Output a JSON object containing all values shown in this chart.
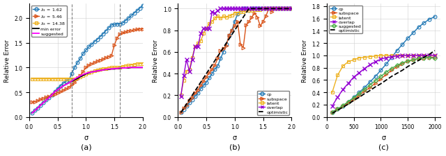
{
  "fig_width": 6.4,
  "fig_height": 2.26,
  "dpi": 100,
  "subplot_a": {
    "sigma": [
      0.05,
      0.1,
      0.15,
      0.2,
      0.25,
      0.3,
      0.35,
      0.4,
      0.45,
      0.5,
      0.55,
      0.6,
      0.65,
      0.7,
      0.75,
      0.8,
      0.85,
      0.9,
      0.95,
      1.0,
      1.05,
      1.1,
      1.15,
      1.2,
      1.25,
      1.3,
      1.35,
      1.4,
      1.45,
      1.5,
      1.55,
      1.6,
      1.65,
      1.7,
      1.75,
      1.8,
      1.85,
      1.9,
      1.95,
      2.0
    ],
    "lambda1": [
      0.08,
      0.13,
      0.18,
      0.24,
      0.29,
      0.34,
      0.39,
      0.45,
      0.51,
      0.57,
      0.63,
      0.68,
      0.72,
      0.75,
      0.88,
      1.0,
      1.1,
      1.18,
      1.28,
      1.35,
      1.42,
      1.47,
      1.52,
      1.57,
      1.62,
      1.68,
      1.74,
      1.8,
      1.86,
      1.87,
      1.88,
      1.88,
      1.9,
      1.95,
      2.0,
      2.05,
      2.1,
      2.15,
      2.2,
      2.25
    ],
    "lambda2": [
      0.3,
      0.31,
      0.33,
      0.36,
      0.38,
      0.4,
      0.42,
      0.44,
      0.46,
      0.49,
      0.51,
      0.54,
      0.57,
      0.6,
      0.65,
      0.7,
      0.76,
      0.84,
      0.92,
      1.0,
      1.05,
      1.08,
      1.1,
      1.13,
      1.15,
      1.17,
      1.2,
      1.22,
      1.24,
      1.45,
      1.6,
      1.68,
      1.7,
      1.72,
      1.74,
      1.75,
      1.76,
      1.77,
      1.78,
      1.78
    ],
    "lambda3": [
      0.77,
      0.77,
      0.77,
      0.77,
      0.77,
      0.77,
      0.77,
      0.77,
      0.77,
      0.77,
      0.77,
      0.77,
      0.77,
      0.77,
      0.77,
      0.77,
      0.79,
      0.81,
      0.84,
      0.87,
      0.89,
      0.91,
      0.93,
      0.95,
      0.96,
      0.97,
      0.98,
      0.99,
      1.0,
      1.0,
      1.0,
      1.01,
      1.02,
      1.03,
      1.04,
      1.05,
      1.06,
      1.07,
      1.08,
      1.08
    ],
    "min_error": [
      0.08,
      0.13,
      0.18,
      0.24,
      0.29,
      0.34,
      0.39,
      0.45,
      0.51,
      0.55,
      0.59,
      0.63,
      0.66,
      0.69,
      0.72,
      0.75,
      0.78,
      0.81,
      0.84,
      0.87,
      0.89,
      0.91,
      0.92,
      0.93,
      0.94,
      0.95,
      0.96,
      0.96,
      0.97,
      0.97,
      0.98,
      0.98,
      0.99,
      0.99,
      0.99,
      1.0,
      1.0,
      1.0,
      1.0,
      1.0
    ],
    "suggested": [
      0.08,
      0.13,
      0.18,
      0.24,
      0.29,
      0.34,
      0.39,
      0.45,
      0.51,
      0.55,
      0.59,
      0.63,
      0.66,
      0.69,
      0.73,
      0.77,
      0.8,
      0.83,
      0.86,
      0.88,
      0.9,
      0.91,
      0.92,
      0.93,
      0.94,
      0.95,
      0.96,
      0.97,
      0.97,
      0.98,
      0.98,
      0.99,
      0.99,
      0.99,
      1.0,
      1.0,
      1.0,
      1.0,
      1.0,
      1.0
    ],
    "vlines": [
      0.75,
      1.6
    ],
    "xlim": [
      0,
      2.0
    ],
    "ylim": [
      0,
      2.3
    ],
    "yticks": [
      0.0,
      0.5,
      1.0,
      1.5,
      2.0
    ],
    "xticks": [
      0.0,
      0.5,
      1.0,
      1.5,
      2.0
    ],
    "xlabel": "σ",
    "ylabel": "Relative Error",
    "label": "(a)",
    "colors": [
      "#1f77b4",
      "#d95319",
      "#edb120",
      "#000000",
      "#ff00ff"
    ]
  },
  "subplot_b": {
    "sigma": [
      0.05,
      0.1,
      0.15,
      0.2,
      0.25,
      0.3,
      0.35,
      0.4,
      0.45,
      0.5,
      0.55,
      0.6,
      0.65,
      0.7,
      0.75,
      0.8,
      0.85,
      0.9,
      0.95,
      1.0,
      1.05,
      1.1,
      1.15,
      1.2,
      1.25,
      1.3,
      1.35,
      1.4,
      1.45,
      1.5,
      1.55,
      1.6,
      1.65,
      1.7,
      1.75,
      1.8,
      1.85,
      1.9,
      1.95,
      2.0
    ],
    "cp": [
      0.04,
      0.07,
      0.1,
      0.13,
      0.16,
      0.19,
      0.22,
      0.26,
      0.29,
      0.32,
      0.36,
      0.4,
      0.44,
      0.47,
      0.54,
      0.6,
      0.67,
      0.75,
      0.8,
      0.88,
      0.95,
      0.97,
      1.0,
      1.0,
      0.98,
      1.0,
      1.0,
      1.0,
      1.0,
      1.0,
      1.0,
      1.0,
      1.0,
      1.0,
      1.0,
      1.0,
      1.0,
      1.0,
      1.0,
      1.0
    ],
    "subspace": [
      0.04,
      0.08,
      0.11,
      0.15,
      0.18,
      0.22,
      0.25,
      0.29,
      0.33,
      0.37,
      0.41,
      0.44,
      0.48,
      0.54,
      0.61,
      0.63,
      0.66,
      0.75,
      0.8,
      0.84,
      0.88,
      0.67,
      0.64,
      0.85,
      0.88,
      0.92,
      0.96,
      0.92,
      0.84,
      0.88,
      0.93,
      1.0,
      0.97,
      1.0,
      1.0,
      1.0,
      1.0,
      1.0,
      1.0,
      1.0
    ],
    "latent": [
      0.2,
      0.34,
      0.42,
      0.44,
      0.55,
      0.65,
      0.68,
      0.7,
      0.77,
      0.82,
      0.86,
      0.88,
      0.91,
      0.93,
      0.91,
      0.93,
      0.92,
      0.93,
      0.94,
      0.96,
      0.96,
      0.97,
      0.97,
      0.98,
      0.98,
      0.98,
      0.99,
      0.99,
      0.99,
      1.0,
      1.0,
      1.0,
      1.0,
      1.0,
      1.0,
      1.0,
      1.0,
      1.0,
      1.0,
      1.0
    ],
    "overlap": [
      0.19,
      0.38,
      0.53,
      0.42,
      0.53,
      0.65,
      0.65,
      0.77,
      0.82,
      0.82,
      0.82,
      0.97,
      0.96,
      0.98,
      1.0,
      1.0,
      1.0,
      1.0,
      1.0,
      1.0,
      1.0,
      1.0,
      1.0,
      1.0,
      1.0,
      1.0,
      1.0,
      1.0,
      1.0,
      1.0,
      1.0,
      1.0,
      1.0,
      1.0,
      1.0,
      1.0,
      1.0,
      1.0,
      1.0,
      1.0
    ],
    "optimistic": [
      0.04,
      0.08,
      0.12,
      0.16,
      0.2,
      0.24,
      0.28,
      0.32,
      0.36,
      0.4,
      0.44,
      0.48,
      0.52,
      0.56,
      0.6,
      0.64,
      0.68,
      0.72,
      0.76,
      0.8,
      0.84,
      0.88,
      0.92,
      0.96,
      1.0,
      1.0,
      1.0,
      1.0,
      1.0,
      1.0,
      1.0,
      1.0,
      1.0,
      1.0,
      1.0,
      1.0,
      1.0,
      1.0,
      1.0,
      1.0
    ],
    "xlim": [
      0,
      2.0
    ],
    "ylim": [
      0,
      1.05
    ],
    "yticks": [
      0.0,
      0.2,
      0.4,
      0.6,
      0.8,
      1.0
    ],
    "xticks": [
      0.0,
      0.5,
      1.0,
      1.5,
      2.0
    ],
    "xlabel": "σ",
    "ylabel": "Relative Error",
    "label": "(b)",
    "colors": [
      "#1f77b4",
      "#d95319",
      "#edb120",
      "#9400d3",
      "#000000"
    ]
  },
  "subplot_c": {
    "sigma": [
      100,
      200,
      300,
      400,
      500,
      600,
      700,
      800,
      900,
      1000,
      1100,
      1200,
      1300,
      1400,
      1500,
      1600,
      1700,
      1800,
      1900,
      2000
    ],
    "cp": [
      0.08,
      0.13,
      0.18,
      0.25,
      0.32,
      0.4,
      0.48,
      0.57,
      0.66,
      0.76,
      0.86,
      0.97,
      1.08,
      1.18,
      1.28,
      1.37,
      1.46,
      1.53,
      1.59,
      1.63
    ],
    "subspace": [
      0.08,
      0.13,
      0.18,
      0.23,
      0.29,
      0.35,
      0.42,
      0.48,
      0.55,
      0.62,
      0.69,
      0.76,
      0.82,
      0.87,
      0.91,
      0.93,
      0.95,
      0.96,
      0.97,
      0.97
    ],
    "latent": [
      0.4,
      0.68,
      0.83,
      0.9,
      0.93,
      0.96,
      0.97,
      0.98,
      0.99,
      1.0,
      1.0,
      1.0,
      1.0,
      1.0,
      1.0,
      1.0,
      1.0,
      1.0,
      1.0,
      1.0
    ],
    "overlap": [
      0.18,
      0.32,
      0.45,
      0.55,
      0.65,
      0.72,
      0.79,
      0.85,
      0.9,
      0.94,
      0.96,
      0.98,
      0.99,
      1.0,
      1.0,
      1.0,
      1.0,
      1.0,
      1.0,
      1.0
    ],
    "suggested": [
      0.08,
      0.13,
      0.19,
      0.25,
      0.31,
      0.38,
      0.45,
      0.52,
      0.59,
      0.66,
      0.73,
      0.79,
      0.84,
      0.88,
      0.91,
      0.93,
      0.95,
      0.96,
      0.97,
      0.95
    ],
    "optimistic": [
      0.06,
      0.11,
      0.16,
      0.21,
      0.27,
      0.32,
      0.38,
      0.43,
      0.49,
      0.54,
      0.6,
      0.66,
      0.71,
      0.76,
      0.82,
      0.87,
      0.92,
      0.97,
      1.02,
      1.08
    ],
    "xlim": [
      0,
      2100
    ],
    "ylim": [
      0,
      1.85
    ],
    "yticks": [
      0.0,
      0.2,
      0.4,
      0.6,
      0.8,
      1.0,
      1.2,
      1.4,
      1.6,
      1.8
    ],
    "xticks": [
      0,
      500,
      1000,
      1500,
      2000
    ],
    "xlabel": "σ",
    "ylabel": "Relative Error",
    "label": "(c)",
    "colors": [
      "#1f77b4",
      "#d95319",
      "#edb120",
      "#9400d3",
      "#4daf4a",
      "#000000"
    ]
  }
}
